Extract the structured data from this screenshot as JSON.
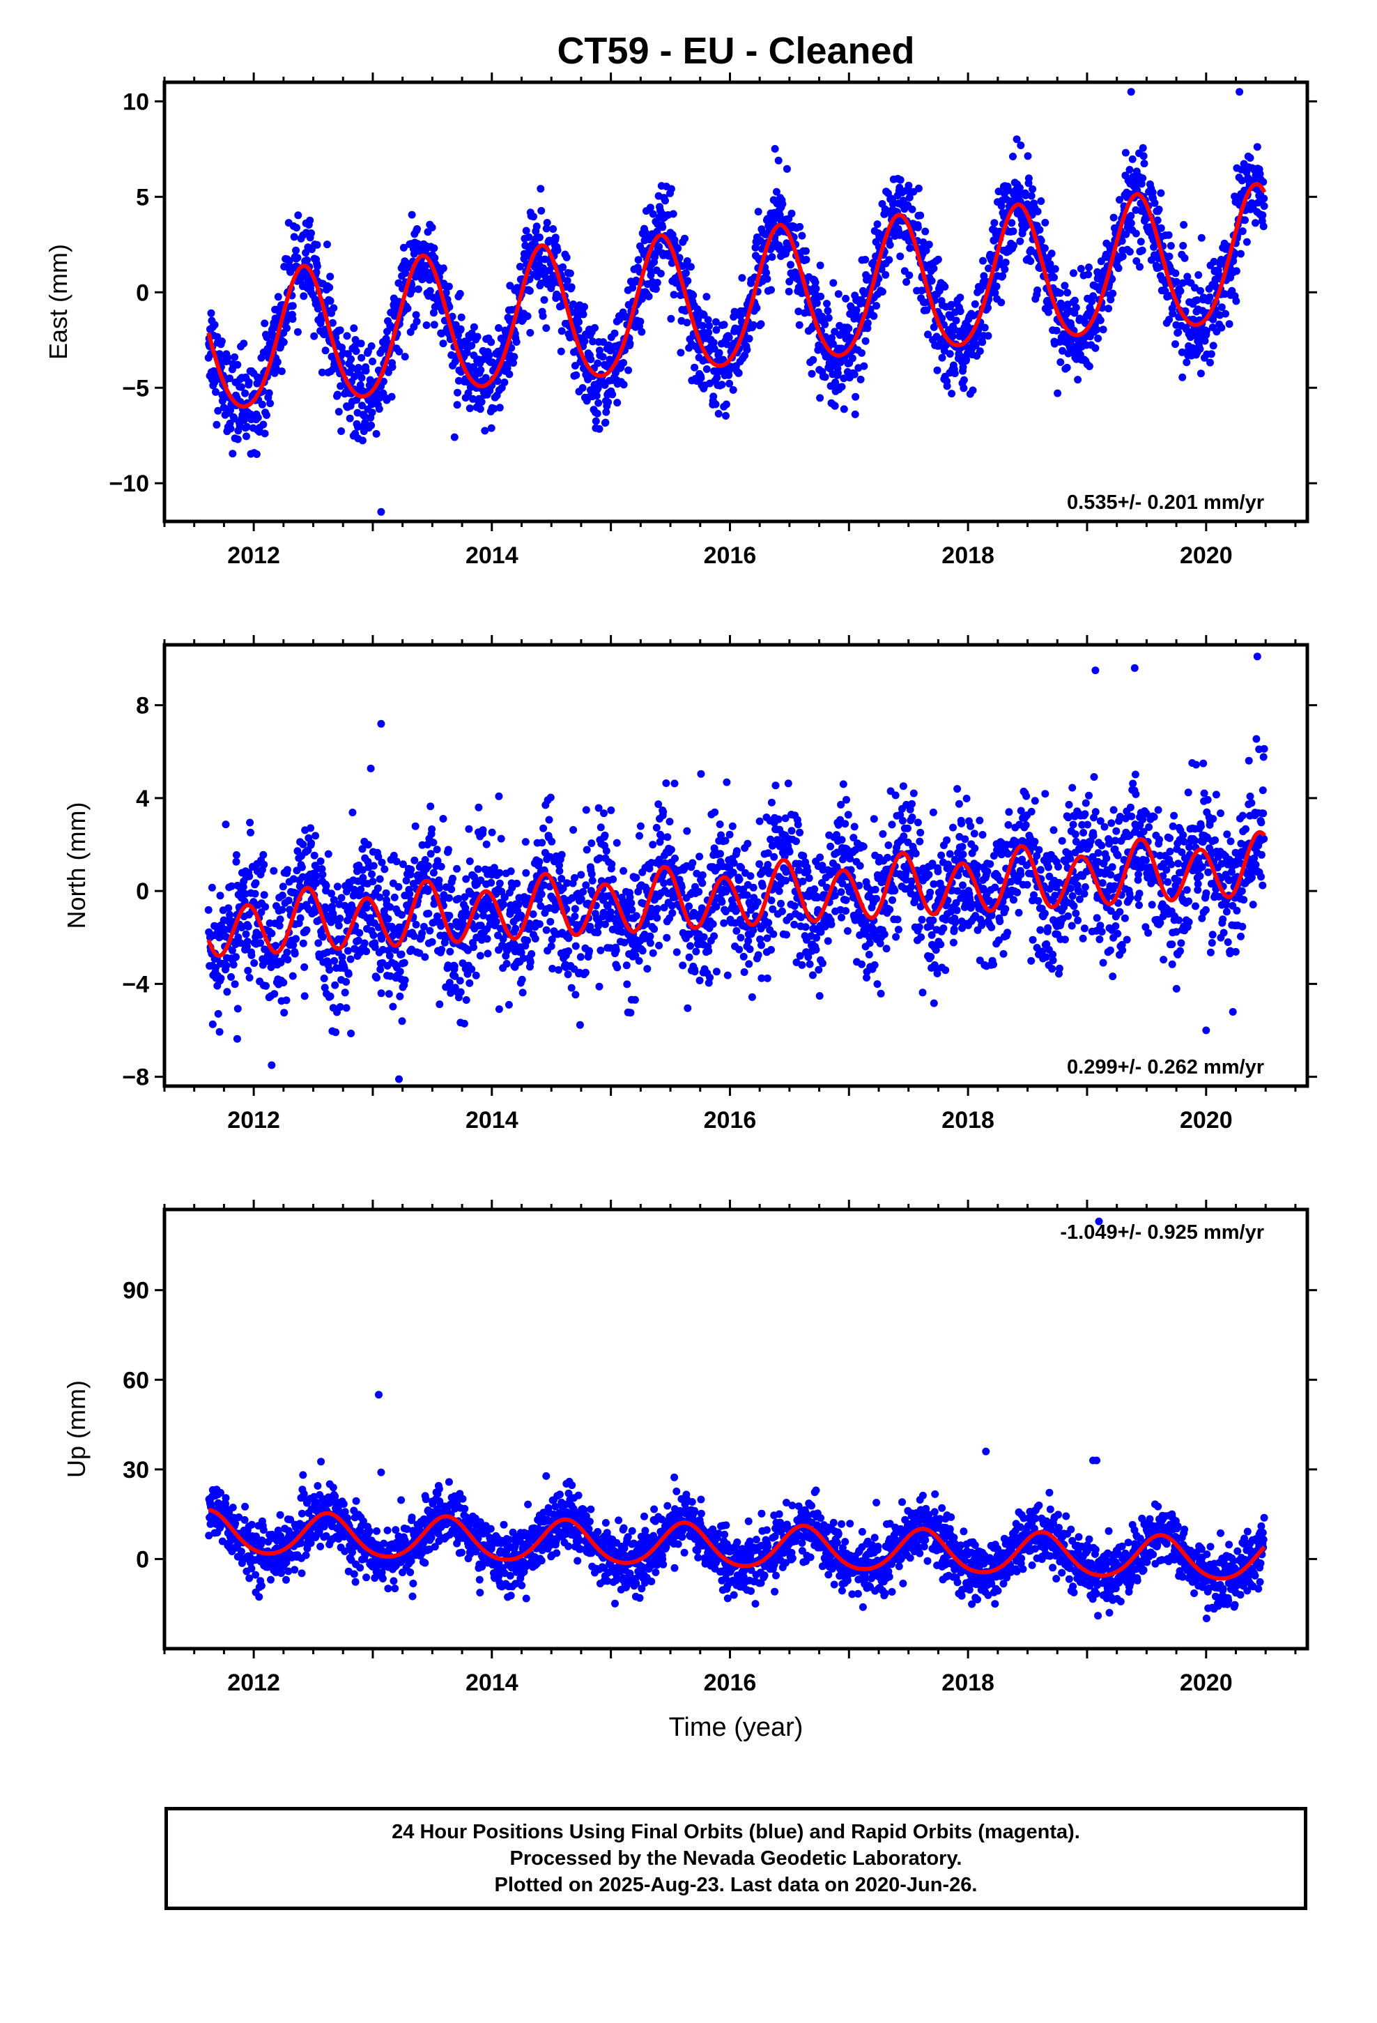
{
  "page": {
    "title": "CT59  - EU - Cleaned",
    "xlabel": "Time (year)",
    "footer": {
      "line1": "24 Hour Positions Using Final Orbits (blue) and Rapid Orbits (magenta).",
      "line2": "Processed by the Nevada Geodetic Laboratory.",
      "line3": "Plotted on 2025-Aug-23. Last data on 2020-Jun-26."
    }
  },
  "colors": {
    "points": "#0000ff",
    "fit": "#ff0000",
    "frame": "#000000"
  },
  "chart_data": [
    {
      "type": "scatter",
      "ylabel": "East (mm)",
      "xlim": [
        2011.25,
        2020.85
      ],
      "ylim": [
        -12,
        11
      ],
      "x_ticks": [
        2012,
        2014,
        2016,
        2018,
        2020
      ],
      "x_tick_labels": [
        "2012",
        "2014",
        "2016",
        "2018",
        "2020"
      ],
      "y_ticks": [
        -10,
        -5,
        0,
        5,
        10
      ],
      "y_tick_labels": [
        "−10",
        "−5",
        "0",
        "5",
        "10"
      ],
      "rate": "0.535+/- 0.201 mm/yr",
      "data_start": 2011.62,
      "data_end": 2020.49,
      "fit": {
        "offset": -0.6,
        "slope": 0.535,
        "annual_amp": 3.55,
        "annual_peak": 2012.42,
        "semiannual_amp": 0.35,
        "semiannual_peak": 2012.42
      },
      "scatter_sd": 1.25,
      "outliers": [
        [
          2013.07,
          -11.5
        ],
        [
          2019.37,
          10.5
        ],
        [
          2020.28,
          10.5
        ]
      ]
    },
    {
      "type": "scatter",
      "ylabel": "North (mm)",
      "xlim": [
        2011.25,
        2020.85
      ],
      "ylim": [
        -8.4,
        10.6
      ],
      "x_ticks": [
        2012,
        2014,
        2016,
        2018,
        2020
      ],
      "x_tick_labels": [
        "2012",
        "2014",
        "2016",
        "2018",
        "2020"
      ],
      "y_ticks": [
        -8,
        -4,
        0,
        4,
        8
      ],
      "y_tick_labels": [
        "−8",
        "−4",
        "0",
        "4",
        "8"
      ],
      "rate": "0.299+/- 0.262 mm/yr",
      "data_start": 2011.62,
      "data_end": 2020.49,
      "fit": {
        "offset": -0.3,
        "slope": 0.299,
        "annual_amp": 0.3,
        "annual_peak": 2012.45,
        "semiannual_amp": 1.2,
        "semiannual_peak": 2012.45
      },
      "scatter_sd": 1.5,
      "outliers": [
        [
          2013.07,
          7.2
        ],
        [
          2013.22,
          -8.1
        ],
        [
          2012.15,
          -7.5
        ],
        [
          2019.07,
          9.5
        ],
        [
          2019.4,
          9.6
        ],
        [
          2020.43,
          10.1
        ],
        [
          2020.0,
          -6.0
        ]
      ]
    },
    {
      "type": "scatter",
      "ylabel": "Up (mm)",
      "xlim": [
        2011.25,
        2020.85
      ],
      "ylim": [
        -30,
        117
      ],
      "x_ticks": [
        2012,
        2014,
        2016,
        2018,
        2020
      ],
      "x_tick_labels": [
        "2012",
        "2014",
        "2016",
        "2018",
        "2020"
      ],
      "y_ticks": [
        0,
        30,
        60,
        90
      ],
      "y_tick_labels": [
        "0",
        "30",
        "60",
        "90"
      ],
      "rate": "-1.049+/- 0.925 mm/yr",
      "data_start": 2011.62,
      "data_end": 2020.49,
      "fit": {
        "offset": 4.0,
        "slope": -1.049,
        "annual_amp": 7.0,
        "annual_peak": 2012.62,
        "semiannual_amp": 0.8,
        "semiannual_peak": 2012.62
      },
      "scatter_sd": 5.0,
      "outliers": [
        [
          2013.05,
          55
        ],
        [
          2013.07,
          29
        ],
        [
          2018.15,
          36
        ],
        [
          2019.05,
          33
        ],
        [
          2019.08,
          33
        ],
        [
          2019.1,
          113
        ]
      ]
    }
  ]
}
